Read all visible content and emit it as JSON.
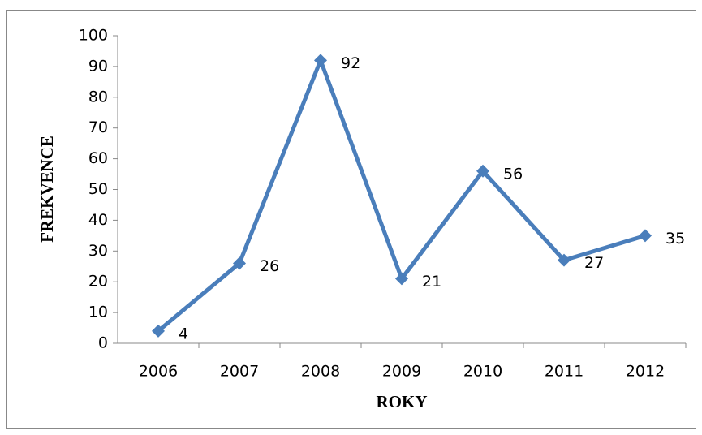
{
  "chart_data": {
    "type": "line",
    "categories": [
      "2006",
      "2007",
      "2008",
      "2009",
      "2010",
      "2011",
      "2012"
    ],
    "series": [
      {
        "name": "FREKVENCE",
        "color": "#4a7ebb",
        "values": [
          4,
          26,
          92,
          21,
          56,
          27,
          35
        ]
      }
    ],
    "x_label": "ROKY",
    "y_label": "FREKVENCE",
    "ylim": [
      0,
      100
    ],
    "yticks": [
      0,
      10,
      20,
      30,
      40,
      50,
      60,
      70,
      80,
      90,
      100
    ],
    "data_labels": true
  }
}
